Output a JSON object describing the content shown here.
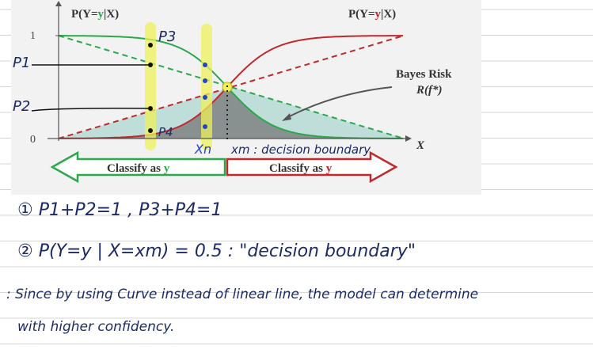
{
  "diagram": {
    "left_axis_label": [
      "P(Y=",
      "y",
      "|X)"
    ],
    "right_axis_label": [
      "P(Y=",
      "y",
      "|X)"
    ],
    "y_tick_top": "1",
    "y_tick_bottom": "0",
    "x_axis_label": "X",
    "bayes_risk": "Bayes Risk",
    "bayes_risk_formula": "R(f*)",
    "left_arrow": [
      "Classify as ",
      "y"
    ],
    "right_arrow": [
      "Classify as ",
      "y"
    ],
    "point_labels": [
      "P3",
      "P1",
      "P2",
      "P4"
    ],
    "xn_label": "Xn",
    "boundary_label": "xm : decision boundary"
  },
  "notes": [
    "① P1+P2=1 ,  P3+P4=1",
    "② P(Y=y | X=xm) = 0.5 : \"decision boundary\"",
    ": Since by using Curve instead of linear line, the model can determine",
    "with higher confidency."
  ]
}
